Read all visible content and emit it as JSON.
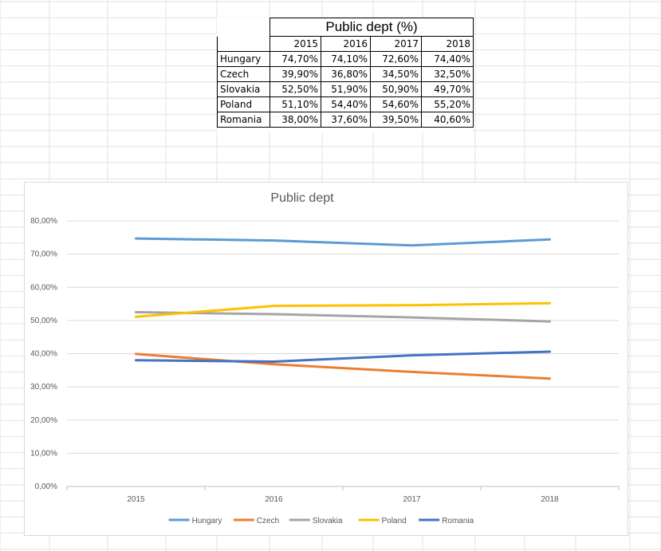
{
  "table": {
    "title": "Public dept (%)",
    "years": [
      "2015",
      "2016",
      "2017",
      "2018"
    ],
    "rows": [
      {
        "country": "Hungary",
        "values": [
          "74,70%",
          "74,10%",
          "72,60%",
          "74,40%"
        ]
      },
      {
        "country": "Czech",
        "values": [
          "39,90%",
          "36,80%",
          "34,50%",
          "32,50%"
        ]
      },
      {
        "country": "Slovakia",
        "values": [
          "52,50%",
          "51,90%",
          "50,90%",
          "49,70%"
        ]
      },
      {
        "country": "Poland",
        "values": [
          "51,10%",
          "54,40%",
          "54,60%",
          "55,20%"
        ]
      },
      {
        "country": "Romania",
        "values": [
          "38,00%",
          "37,60%",
          "39,50%",
          "40,60%"
        ]
      }
    ]
  },
  "chart_data": {
    "type": "line",
    "title": "Public dept",
    "xlabel": "",
    "ylabel": "",
    "categories": [
      "2015",
      "2016",
      "2017",
      "2018"
    ],
    "ylim": [
      0,
      80
    ],
    "ytick_values": [
      0,
      10,
      20,
      30,
      40,
      50,
      60,
      70,
      80
    ],
    "ytick_labels": [
      "0,00%",
      "10,00%",
      "20,00%",
      "30,00%",
      "40,00%",
      "50,00%",
      "60,00%",
      "70,00%",
      "80,00%"
    ],
    "grid": true,
    "legend_position": "bottom",
    "series": [
      {
        "name": "Hungary",
        "color": "#5b9bd5",
        "values": [
          74.7,
          74.1,
          72.6,
          74.4
        ]
      },
      {
        "name": "Czech",
        "color": "#ed7d31",
        "values": [
          39.9,
          36.8,
          34.5,
          32.5
        ]
      },
      {
        "name": "Slovakia",
        "color": "#a5a5a5",
        "values": [
          52.5,
          51.9,
          50.9,
          49.7
        ]
      },
      {
        "name": "Poland",
        "color": "#ffc000",
        "values": [
          51.1,
          54.4,
          54.6,
          55.2
        ]
      },
      {
        "name": "Romania",
        "color": "#4472c4",
        "values": [
          38.0,
          37.6,
          39.5,
          40.6
        ]
      }
    ]
  }
}
